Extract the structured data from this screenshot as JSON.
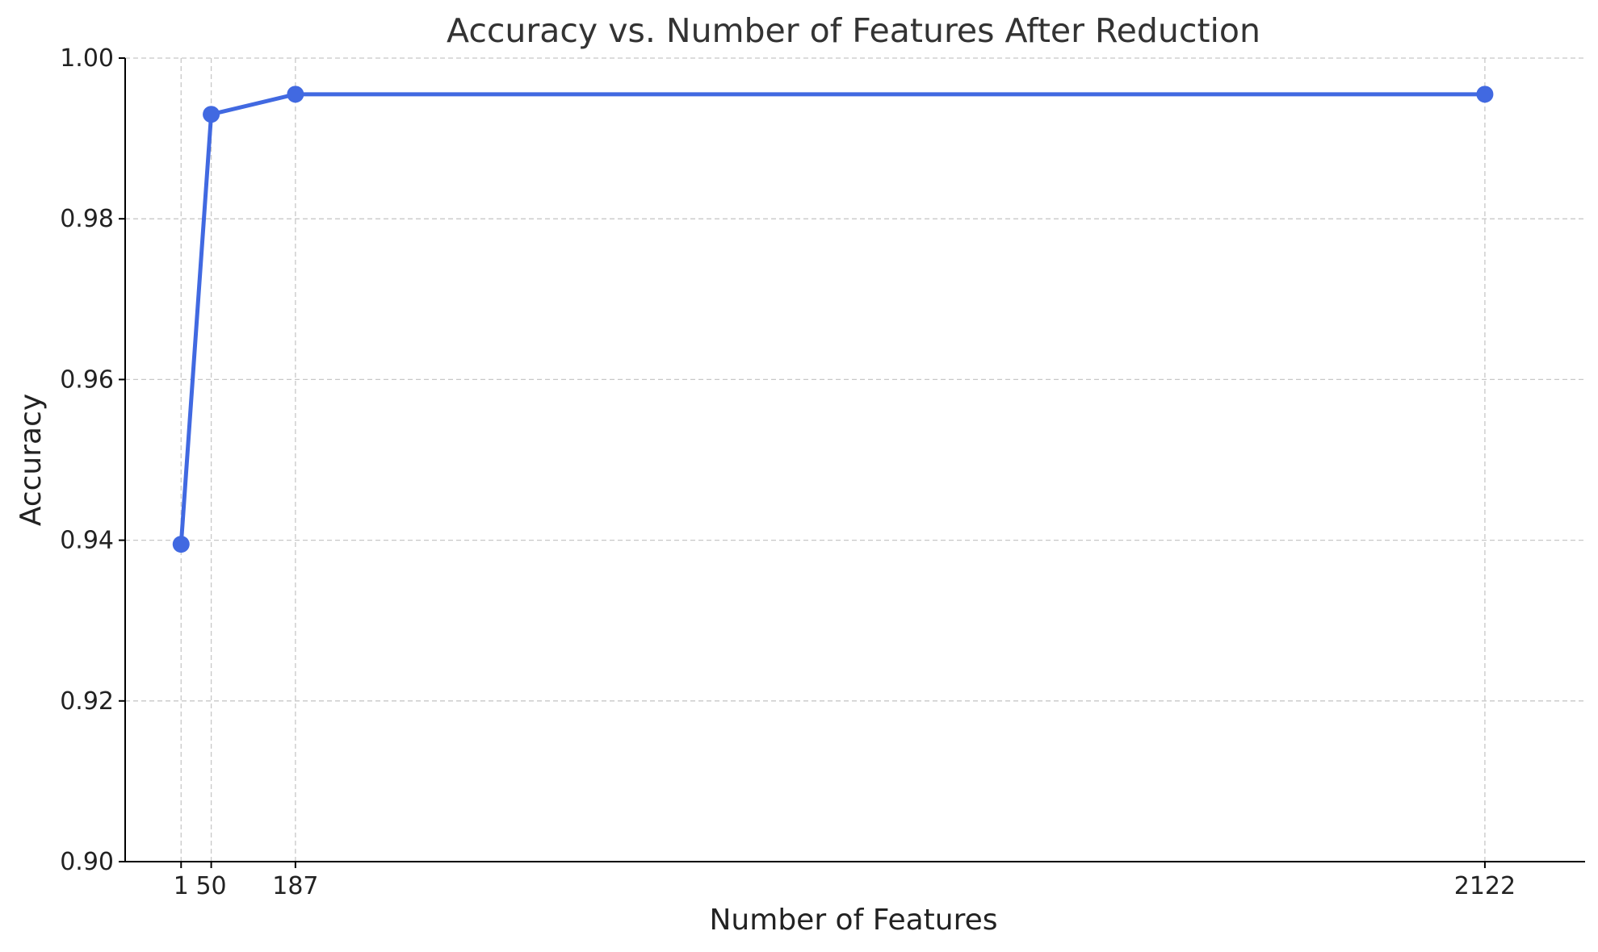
{
  "chart_data": {
    "type": "line",
    "title": "Accuracy vs. Number of Features After Reduction",
    "xlabel": "Number of Features",
    "ylabel": "Accuracy",
    "x": [
      1,
      50,
      187,
      2122
    ],
    "xticks": [
      1,
      50,
      187,
      2122
    ],
    "xtick_labels": [
      "1",
      "50",
      "187",
      "2122"
    ],
    "ylim": [
      0.9,
      1.0
    ],
    "yticks": [
      0.9,
      0.92,
      0.94,
      0.96,
      0.98,
      1.0
    ],
    "ytick_labels": [
      "0.90",
      "0.92",
      "0.94",
      "0.96",
      "0.98",
      "1.00"
    ],
    "series": [
      {
        "values": [
          0.9395,
          0.993,
          0.9955,
          0.9955
        ],
        "color": "#4169e1",
        "marker": "circle"
      }
    ],
    "grid": true,
    "legend": "none"
  }
}
